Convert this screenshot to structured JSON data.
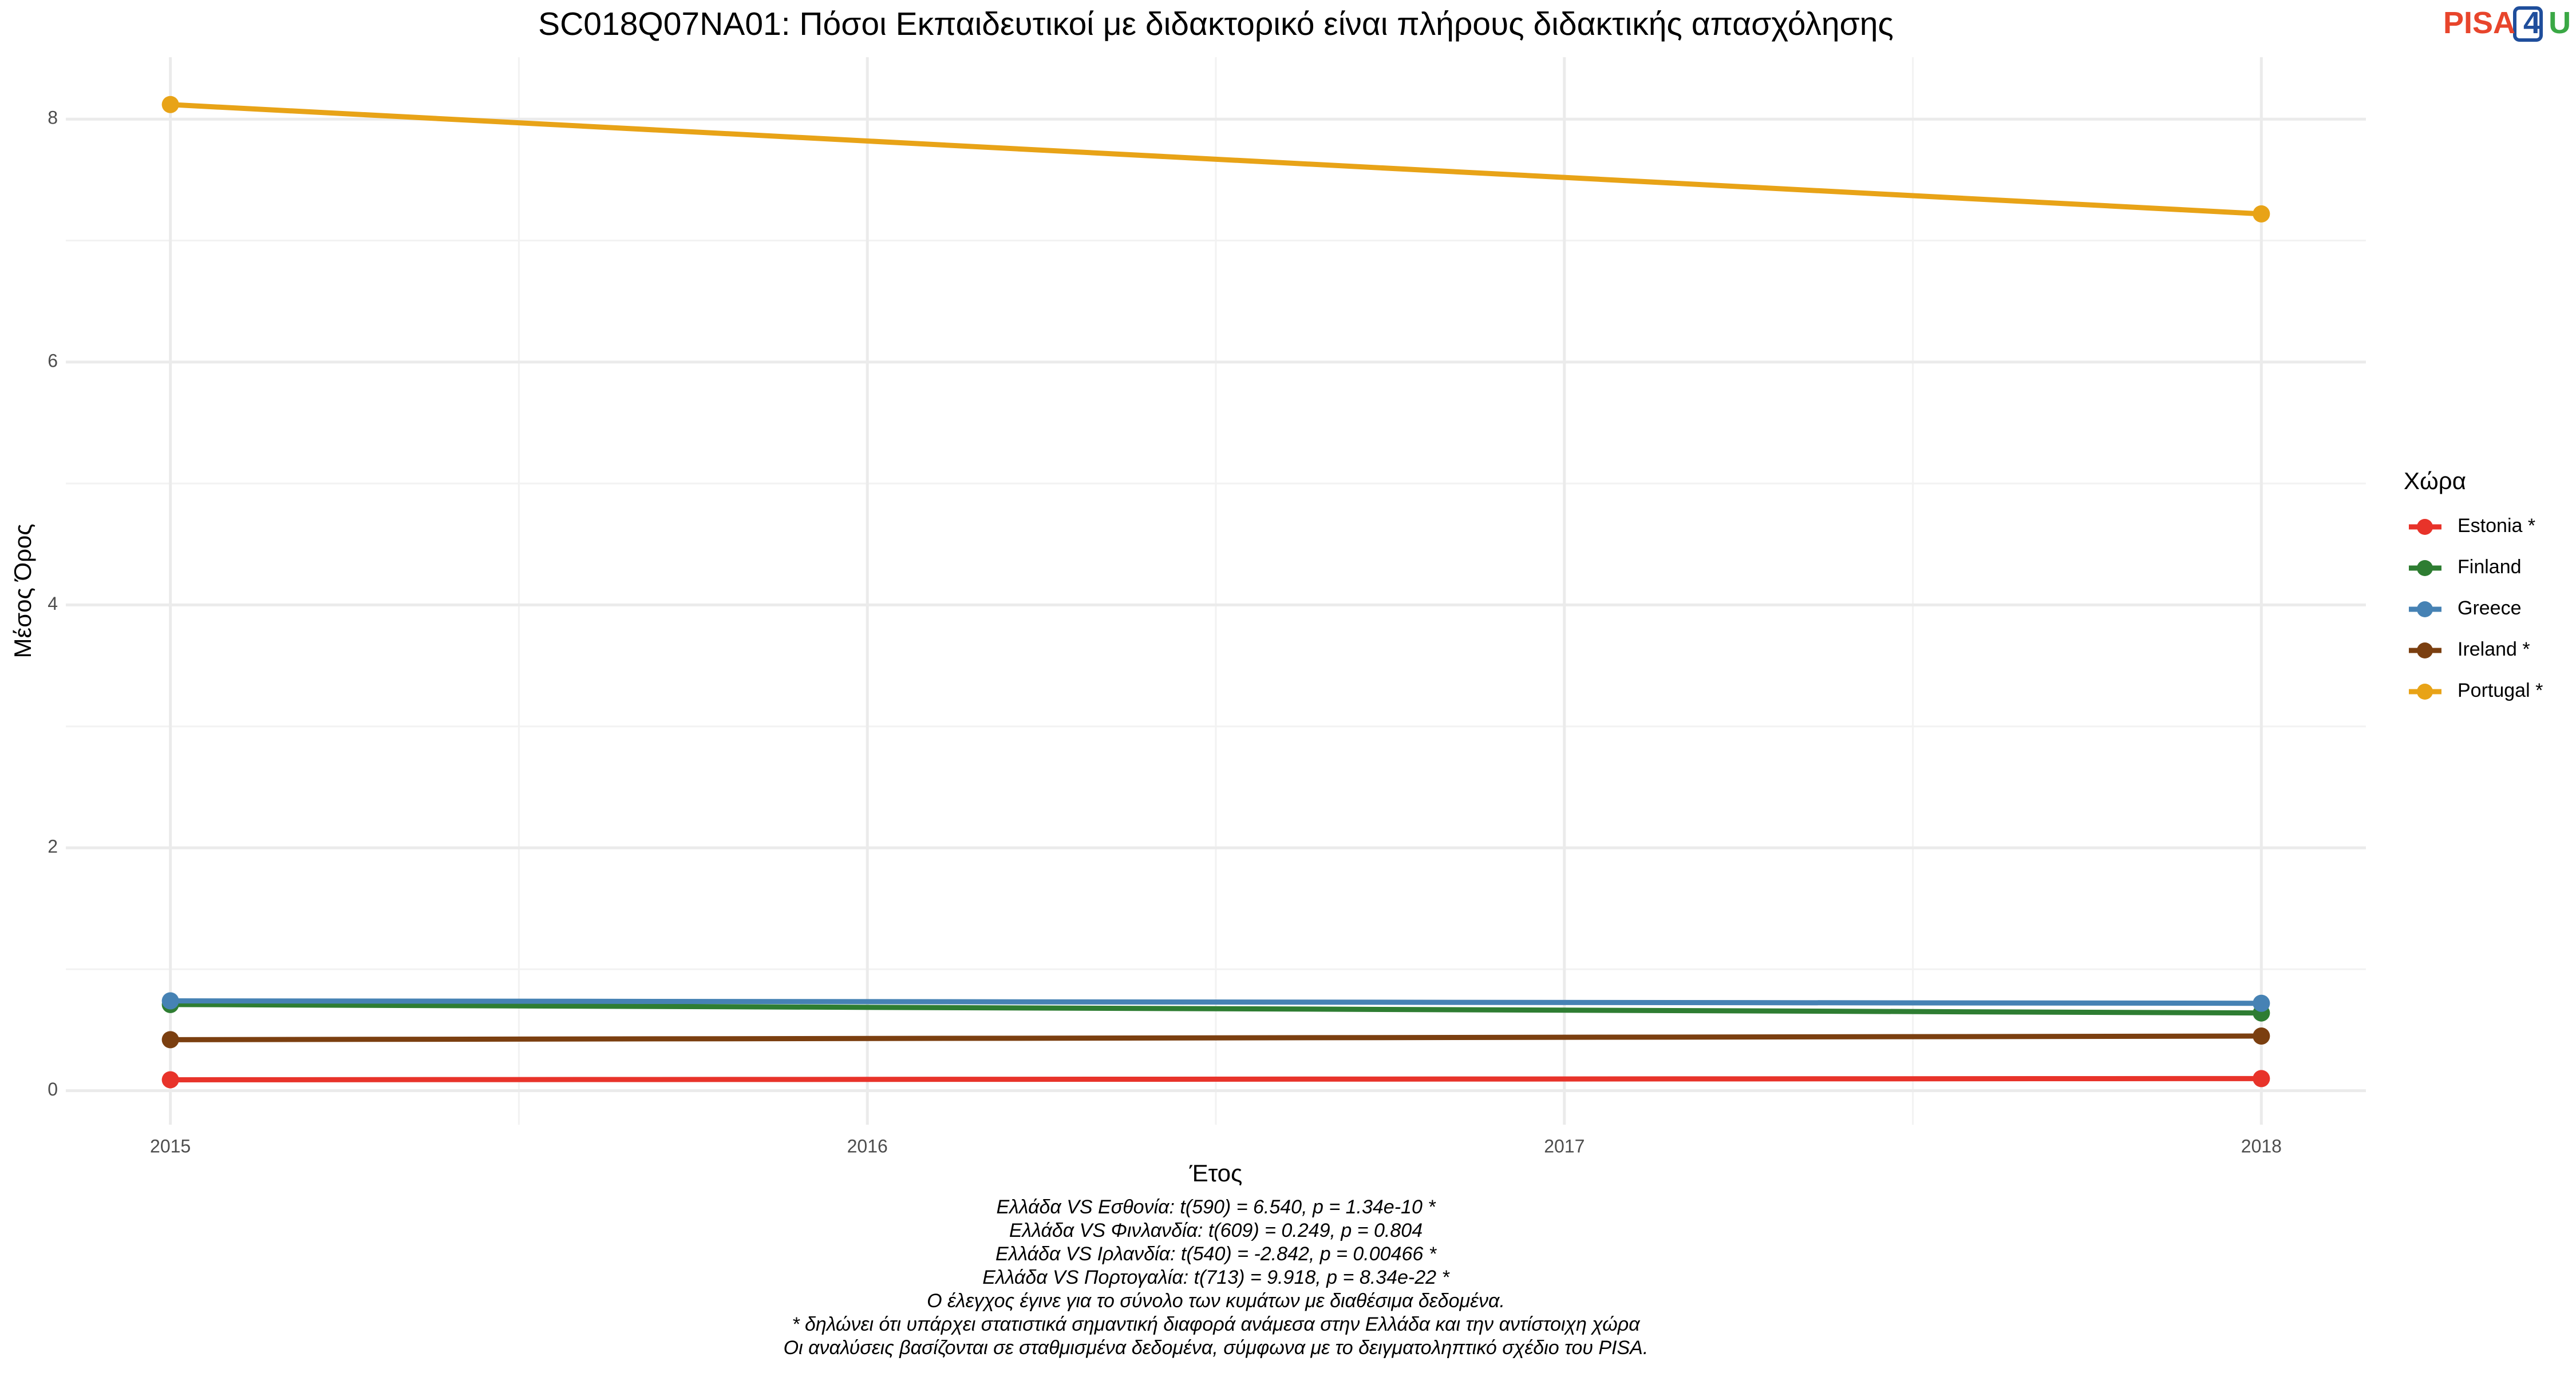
{
  "chart_data": {
    "type": "line",
    "title": "SC018Q07NA01: Πόσοι Εκπαιδευτικοί με διδακτορικό είναι πλήρους διδακτικής απασχόλησης",
    "x_label": "Έτος",
    "y_label": "Μέσος Όρος",
    "legend_title": "Χώρα",
    "legend_position": "right",
    "x": [
      2015,
      2018
    ],
    "series": [
      {
        "name": "Estonia *",
        "color": "#e8332a",
        "values": [
          0.09,
          0.1
        ]
      },
      {
        "name": "Finland",
        "color": "#2e7d32",
        "values": [
          0.71,
          0.64
        ]
      },
      {
        "name": "Greece",
        "color": "#4682b4",
        "values": [
          0.74,
          0.72
        ]
      },
      {
        "name": "Ireland *",
        "color": "#7b3f10",
        "values": [
          0.42,
          0.45
        ]
      },
      {
        "name": "Portugal *",
        "color": "#e8a317",
        "values": [
          8.12,
          7.22
        ]
      }
    ],
    "xlim": [
      2014.85,
      2018.15
    ],
    "xticks": [
      2015,
      2016,
      2017,
      2018
    ],
    "ylim": [
      -0.28,
      8.51
    ],
    "yticks": [
      0,
      2,
      4,
      6,
      8
    ],
    "grid": true,
    "footnotes": [
      "Ελλάδα VS Εσθονία: t(590) = 6.540, p = 1.34e-10 *",
      "Ελλάδα VS Φινλανδία: t(609) = 0.249, p = 0.804",
      "Ελλάδα VS Ιρλανδία: t(540) = -2.842, p = 0.00466 *",
      "Ελλάδα VS Πορτογαλία: t(713) = 9.918, p = 8.34e-22 *",
      "Ο έλεγχος έγινε για το σύνολο των κυμάτων με διαθέσιμα δεδομένα.",
      "* δηλώνει ότι υπάρχει στατιστικά σημαντική διαφορά ανάμεσα στην Ελλάδα και την αντίστοιχη χώρα",
      "Οι αναλύσεις βασίζονται σε σταθμισμένα δεδομένα, σύμφωνα με το δειγματοληπτικό σχέδιο του PISA."
    ]
  },
  "logo": {
    "part1": "PISA",
    "part2": "4",
    "part3": "U"
  }
}
